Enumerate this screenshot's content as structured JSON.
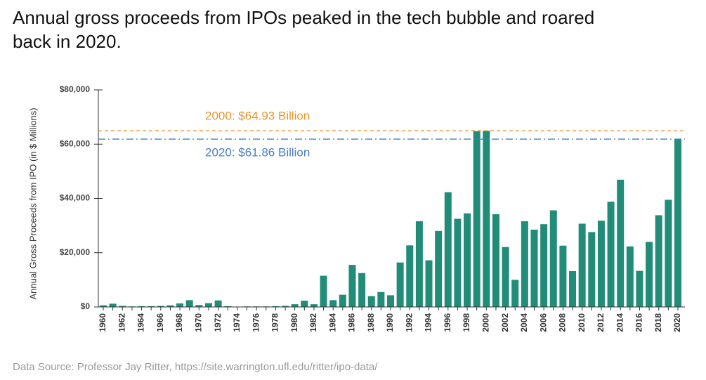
{
  "chart_data": {
    "type": "bar",
    "title": "Annual gross proceeds from IPOs peaked in the tech bubble and roared back in 2020.",
    "y_label": "Annual Gross Proceeds from IPO (in $ Millions)",
    "source": "Data Source: Professor Jay Ritter, https://site.warrington.ufl.edu/ritter/ipo-data/",
    "categories": [
      "1960",
      null,
      "1962",
      null,
      "1964",
      null,
      "1966",
      null,
      "1968",
      null,
      "1970",
      null,
      "1972",
      null,
      "1974",
      null,
      "1976",
      null,
      "1978",
      null,
      "1980",
      null,
      "1982",
      null,
      "1984",
      null,
      "1986",
      null,
      "1988",
      null,
      "1990",
      null,
      "1992",
      null,
      "1994",
      null,
      "1996",
      null,
      "1998",
      null,
      "2000",
      null,
      "2002",
      null,
      "2004",
      null,
      "2006",
      null,
      "2008",
      null,
      "2010",
      null,
      "2012",
      null,
      "2014",
      null,
      "2016",
      null,
      "2018",
      null,
      "2020"
    ],
    "values": [
      600,
      1200,
      400,
      200,
      300,
      300,
      400,
      600,
      1300,
      2500,
      700,
      1400,
      2400,
      300,
      100,
      200,
      200,
      200,
      300,
      400,
      1000,
      2300,
      1000,
      11500,
      2500,
      4500,
      15500,
      12500,
      4000,
      5500,
      4300,
      16400,
      22700,
      31600,
      17200,
      28000,
      42300,
      32500,
      34500,
      64800,
      64930,
      34200,
      22100,
      10000,
      31600,
      28500,
      30500,
      35600,
      22600,
      13200,
      30700,
      27600,
      31800,
      38800,
      46900,
      22300,
      13300,
      24000,
      33800,
      39500,
      61860
    ],
    "color": "#218c77",
    "ylim": [
      0,
      80000
    ],
    "yticks": [
      {
        "value": 0,
        "label": "$0"
      },
      {
        "value": 20000,
        "label": "$20,000"
      },
      {
        "value": 40000,
        "label": "$40,000"
      },
      {
        "value": 60000,
        "label": "$60,000"
      },
      {
        "value": 80000,
        "label": "$80,000"
      }
    ],
    "reference_lines": [
      {
        "value": 64930,
        "label": "2000: $64.93 Billion",
        "color": "#e8962e",
        "style": "dashed",
        "label_position": "above"
      },
      {
        "value": 61860,
        "label": "2020: $61.86 Billion",
        "color": "#4a7fc1",
        "style": "dashdot",
        "label_position": "below"
      }
    ]
  }
}
